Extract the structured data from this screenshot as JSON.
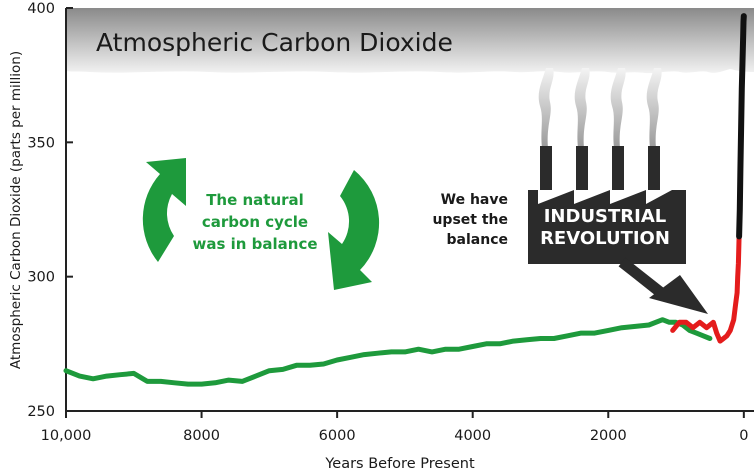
{
  "chart_data": {
    "type": "line",
    "title": "Atmospheric Carbon Dioxide",
    "xlabel": "Years Before Present",
    "ylabel": "Atmospheric Carbon Dioxide (parts per million)",
    "xlim": [
      10000,
      -150
    ],
    "ylim": [
      250,
      400
    ],
    "x_ticks": [
      10000,
      8000,
      6000,
      4000,
      2000,
      0
    ],
    "x_tick_labels": [
      "10,000",
      "8000",
      "6000",
      "4000",
      "2000",
      "0"
    ],
    "y_ticks": [
      250,
      300,
      350,
      400
    ],
    "y_tick_labels": [
      "250",
      "300",
      "350",
      "400"
    ],
    "grid": false,
    "series": [
      {
        "color": "#1e9a3c",
        "x": [
          10000,
          9800,
          9600,
          9400,
          9200,
          9000,
          8800,
          8600,
          8400,
          8200,
          8000,
          7800,
          7600,
          7400,
          7200,
          7000,
          6800,
          6600,
          6400,
          6200,
          6000,
          5800,
          5600,
          5400,
          5200,
          5000,
          4800,
          4600,
          4400,
          4200,
          4000,
          3800,
          3600,
          3400,
          3200,
          3000,
          2800,
          2600,
          2400,
          2200,
          2000,
          1800,
          1600,
          1400,
          1200,
          1100,
          1000,
          900,
          800,
          700,
          600,
          500
        ],
        "values": [
          265,
          263,
          262,
          263,
          263.5,
          264,
          261,
          261,
          260.5,
          260,
          260,
          260.5,
          261.5,
          261,
          263,
          265,
          265.5,
          267,
          267,
          267.5,
          269,
          270,
          271,
          271.5,
          272,
          272,
          273,
          272,
          273,
          273,
          274,
          275,
          275,
          276,
          276.5,
          277,
          277,
          278,
          279,
          279,
          280,
          281,
          281.5,
          282,
          284,
          283,
          283,
          282,
          280,
          279,
          278,
          277
        ]
      },
      {
        "color": "#e41c1c",
        "x": [
          1050,
          950,
          850,
          750,
          650,
          550,
          450,
          400,
          350,
          300,
          250,
          200,
          150,
          120,
          100,
          90,
          80,
          70
        ],
        "values": [
          280,
          283,
          283,
          281,
          283,
          281,
          283,
          279,
          276,
          277,
          278,
          280,
          284,
          290,
          294,
          300,
          305,
          315
        ]
      },
      {
        "color": "#111111",
        "x": [
          70,
          60,
          50,
          40,
          30,
          20,
          10,
          5,
          0
        ],
        "values": [
          315,
          325,
          340,
          355,
          370,
          380,
          390,
          395,
          397
        ]
      }
    ],
    "annotations": [
      {
        "id": "balance",
        "lines": [
          "The natural",
          "carbon cycle",
          "was in balance"
        ]
      },
      {
        "id": "upset",
        "lines": [
          "We have",
          "upset the",
          "balance"
        ]
      },
      {
        "id": "industrial",
        "lines": [
          "INDUSTRIAL",
          "REVOLUTION"
        ]
      }
    ]
  },
  "colors": {
    "green": "#1e9a3c",
    "red": "#e41c1c",
    "black": "#111111",
    "smoke": "#b5b5b5",
    "factory": "#2b2b2b"
  },
  "icons": [
    "recycle-arrow-icon",
    "factory-icon",
    "smoke-icon",
    "pointer-arrow-icon"
  ]
}
